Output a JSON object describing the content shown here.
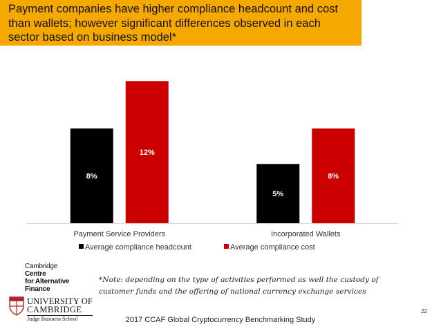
{
  "banner": {
    "title": "Payment companies have higher compliance headcount and cost than wallets; however significant differences observed in each sector based on business model*"
  },
  "chart_data": {
    "type": "bar",
    "categories": [
      "Payment Service Providers",
      "Incorporated Wallets"
    ],
    "series": [
      {
        "name": "Average compliance headcount",
        "values": [
          8,
          5
        ],
        "color": "#000000",
        "labels": [
          "8%",
          "5%"
        ]
      },
      {
        "name": "Average compliance cost",
        "values": [
          12,
          8
        ],
        "color": "#cc0000",
        "labels": [
          "12%",
          "8%"
        ]
      }
    ],
    "ylim": [
      0,
      14
    ],
    "grid": false,
    "legend_position": "bottom"
  },
  "note": "*Note: depending on the type of activities performed as well the custody of customer funds and the offering of national currency exchange services",
  "logos": {
    "ccaf": [
      "Cambridge",
      "Centre",
      "for Alternative",
      "Finance"
    ],
    "cambridge": [
      "UNIVERSITY OF",
      "CAMBRIDGE",
      "Judge Business School"
    ]
  },
  "footer": "2017 CCAF Global Cryptocurrency Benchmarking Study",
  "page_number": "22"
}
